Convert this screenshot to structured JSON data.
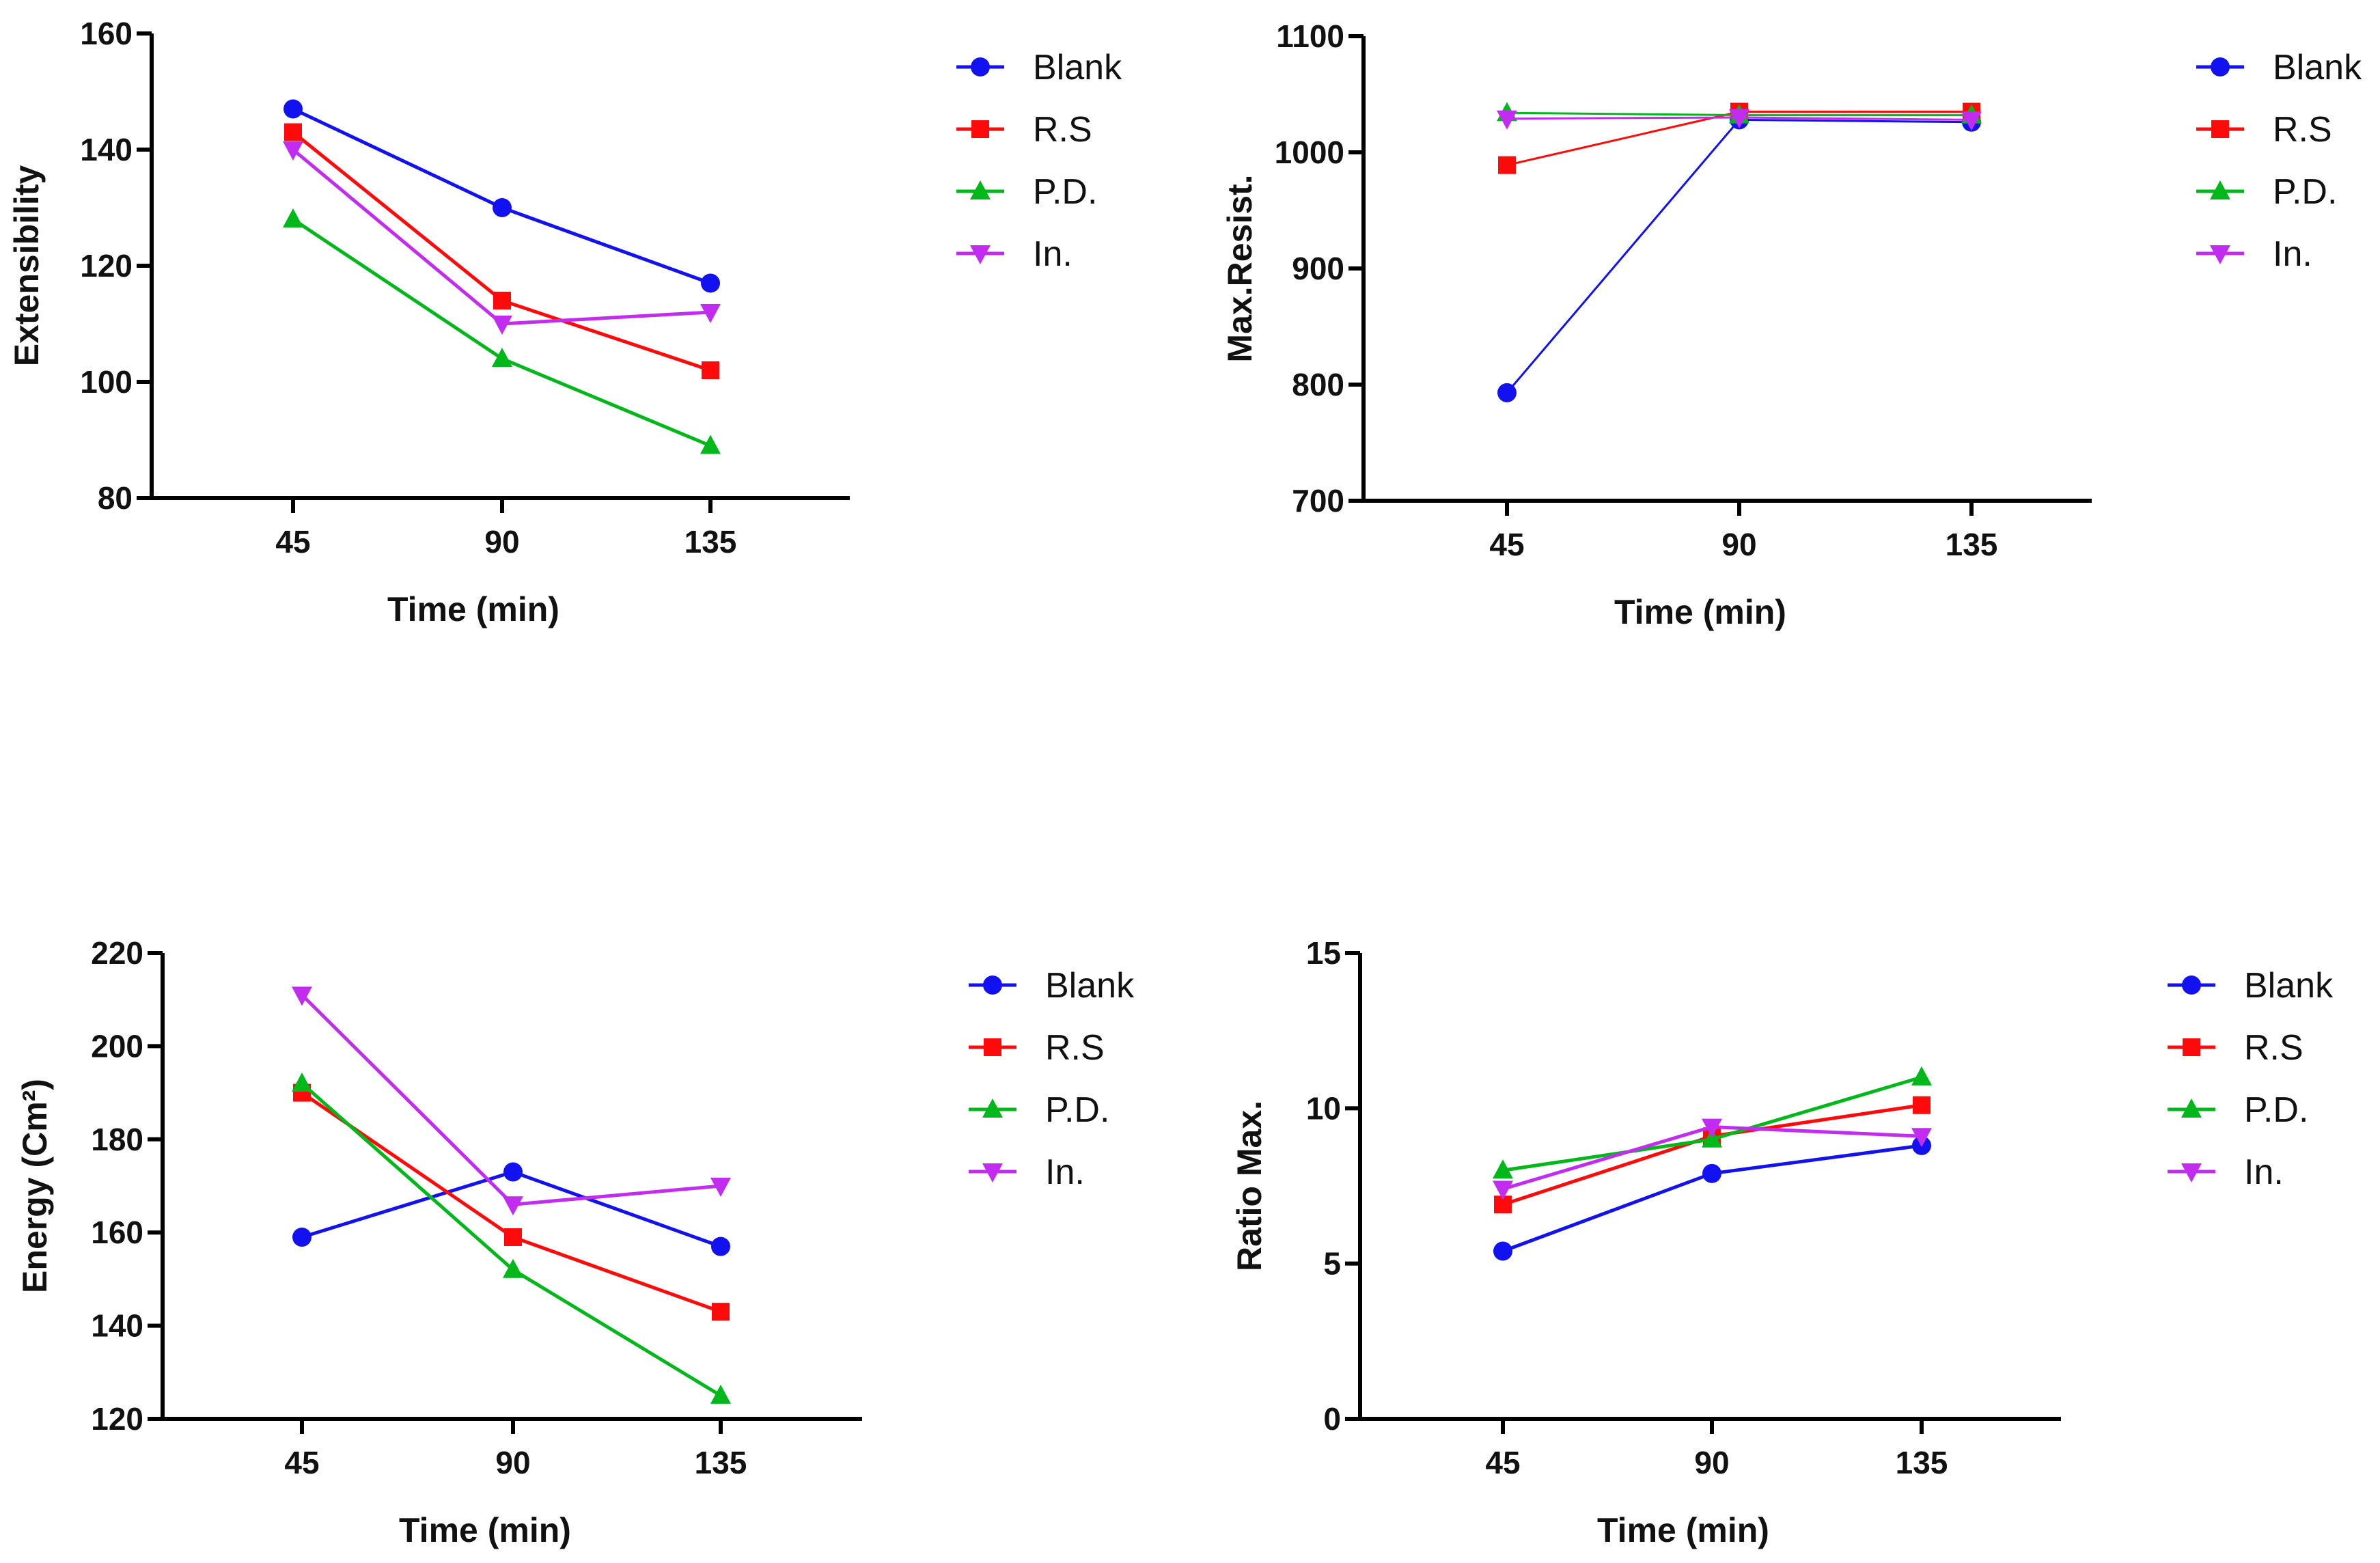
{
  "colors": {
    "Blank": "#1212f0",
    "R.S": "#ff0a0a",
    "P.D.": "#00b81a",
    "In.": "#c22cf0"
  },
  "markers": {
    "Blank": "circle",
    "R.S": "square",
    "P.D.": "triangle-up",
    "In.": "triangle-down"
  },
  "chart_data": [
    {
      "type": "line",
      "xlabel": "Time (min)",
      "ylabel": "Extensibility",
      "categories": [
        "45",
        "90",
        "135"
      ],
      "ylim": [
        80,
        160
      ],
      "yticks": [
        80,
        100,
        120,
        140,
        160
      ],
      "legend": "right",
      "grid": false,
      "series": [
        {
          "name": "Blank",
          "values": [
            147,
            130,
            117
          ]
        },
        {
          "name": "R.S",
          "values": [
            143,
            114,
            102
          ]
        },
        {
          "name": "P.D.",
          "values": [
            128,
            104,
            89
          ]
        },
        {
          "name": "In.",
          "values": [
            140,
            110,
            112
          ]
        }
      ]
    },
    {
      "type": "line",
      "xlabel": "Time (min)",
      "ylabel": "Max.Resist.",
      "categories": [
        "45",
        "90",
        "135"
      ],
      "ylim": [
        700,
        1100
      ],
      "yticks": [
        700,
        800,
        900,
        1000,
        1100
      ],
      "legend": "right",
      "grid": false,
      "series": [
        {
          "name": "Blank",
          "values": [
            793,
            1028,
            1026
          ]
        },
        {
          "name": "R.S",
          "values": [
            989,
            1035,
            1035
          ]
        },
        {
          "name": "P.D.",
          "values": [
            1034,
            1032,
            1032
          ]
        },
        {
          "name": "In.",
          "values": [
            1029,
            1030,
            1028
          ]
        }
      ]
    },
    {
      "type": "line",
      "xlabel": "Time (min)",
      "ylabel": "Energy (Cm²)",
      "categories": [
        "45",
        "90",
        "135"
      ],
      "ylim": [
        120,
        220
      ],
      "yticks": [
        120,
        140,
        160,
        180,
        200,
        220
      ],
      "legend": "right",
      "grid": false,
      "series": [
        {
          "name": "Blank",
          "values": [
            159,
            173,
            157
          ]
        },
        {
          "name": "R.S",
          "values": [
            190,
            159,
            143
          ]
        },
        {
          "name": "P.D.",
          "values": [
            192,
            152,
            125
          ]
        },
        {
          "name": "In.",
          "values": [
            211,
            166,
            170
          ]
        }
      ]
    },
    {
      "type": "line",
      "xlabel": "Time (min)",
      "ylabel": "Ratio Max.",
      "categories": [
        "45",
        "90",
        "135"
      ],
      "ylim": [
        0,
        15
      ],
      "yticks": [
        0,
        5,
        10,
        15
      ],
      "legend": "right",
      "grid": false,
      "series": [
        {
          "name": "Blank",
          "values": [
            5.4,
            7.9,
            8.8
          ]
        },
        {
          "name": "R.S",
          "values": [
            6.9,
            9.1,
            10.1
          ]
        },
        {
          "name": "P.D.",
          "values": [
            8.0,
            9.0,
            11.0
          ]
        },
        {
          "name": "In.",
          "values": [
            7.4,
            9.4,
            9.1
          ]
        }
      ]
    }
  ]
}
